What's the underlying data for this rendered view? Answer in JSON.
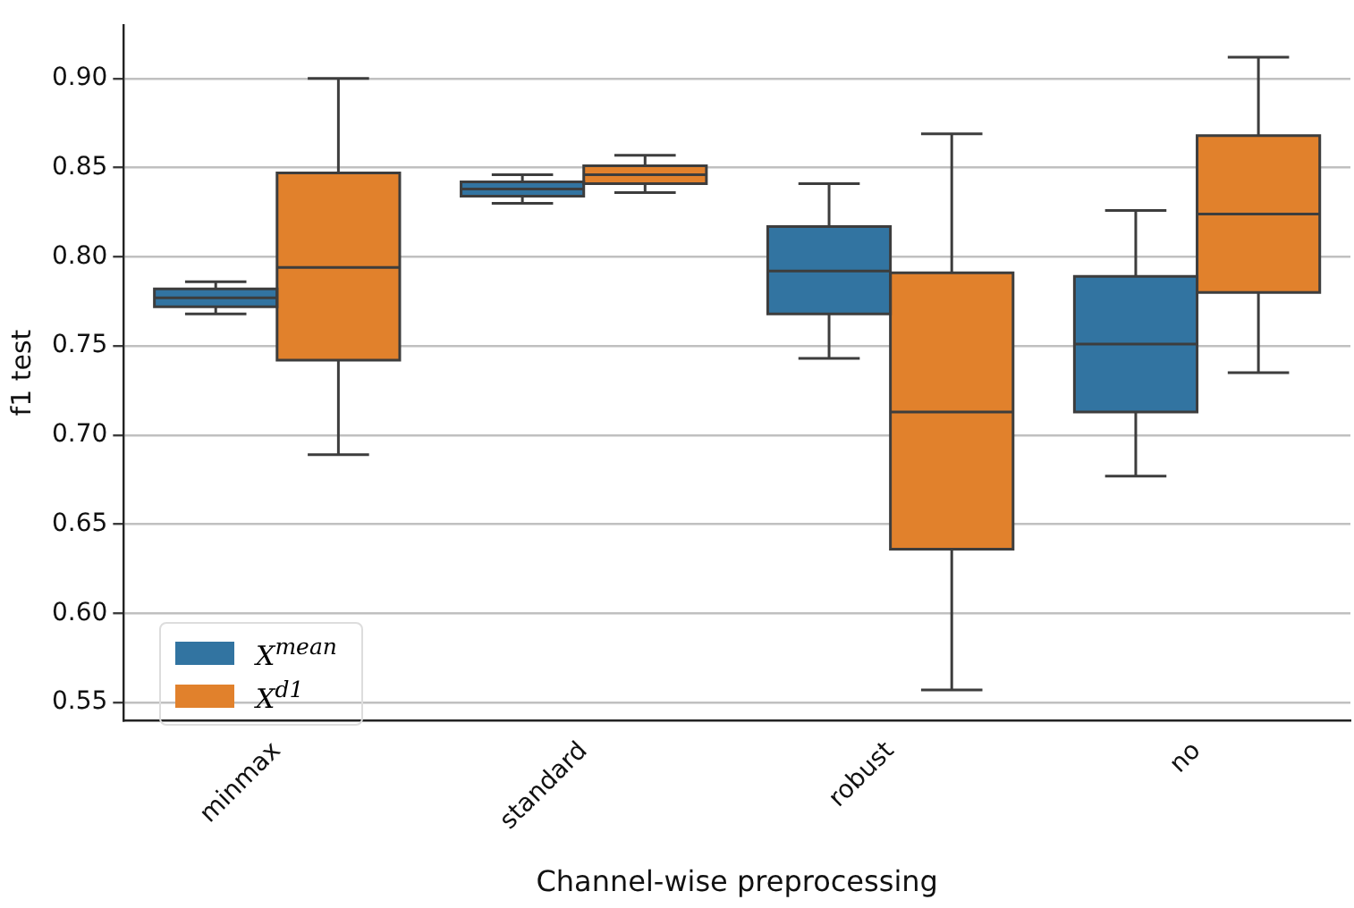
{
  "chart_data": {
    "type": "box",
    "xlabel": "Channel-wise preprocessing",
    "ylabel": "f1 test",
    "categories": [
      "minmax",
      "standard",
      "robust",
      "no"
    ],
    "ylim": [
      0.54,
      0.93
    ],
    "yticks": [
      {
        "value": 0.55,
        "label": "0.55"
      },
      {
        "value": 0.6,
        "label": "0.60"
      },
      {
        "value": 0.65,
        "label": "0.65"
      },
      {
        "value": 0.7,
        "label": "0.70"
      },
      {
        "value": 0.75,
        "label": "0.75"
      },
      {
        "value": 0.8,
        "label": "0.80"
      },
      {
        "value": 0.85,
        "label": "0.85"
      },
      {
        "value": 0.9,
        "label": "0.90"
      }
    ],
    "grid": "y",
    "legend": "bottom left",
    "series": [
      {
        "name": "X$^{mean}$",
        "color": "#3274a1",
        "boxes": [
          {
            "low": 0.768,
            "q1": 0.772,
            "median": 0.777,
            "q3": 0.782,
            "high": 0.786
          },
          {
            "low": 0.83,
            "q1": 0.834,
            "median": 0.838,
            "q3": 0.842,
            "high": 0.846
          },
          {
            "low": 0.743,
            "q1": 0.768,
            "median": 0.792,
            "q3": 0.817,
            "high": 0.841
          },
          {
            "low": 0.677,
            "q1": 0.713,
            "median": 0.751,
            "q3": 0.789,
            "high": 0.826
          }
        ]
      },
      {
        "name": "X$^{d1}$",
        "color": "#e1812c",
        "boxes": [
          {
            "low": 0.689,
            "q1": 0.742,
            "median": 0.794,
            "q3": 0.847,
            "high": 0.9
          },
          {
            "low": 0.836,
            "q1": 0.841,
            "median": 0.846,
            "q3": 0.851,
            "high": 0.857
          },
          {
            "low": 0.557,
            "q1": 0.636,
            "median": 0.713,
            "q3": 0.791,
            "high": 0.869
          },
          {
            "low": 0.735,
            "q1": 0.78,
            "median": 0.824,
            "q3": 0.868,
            "high": 0.912
          }
        ]
      }
    ]
  }
}
